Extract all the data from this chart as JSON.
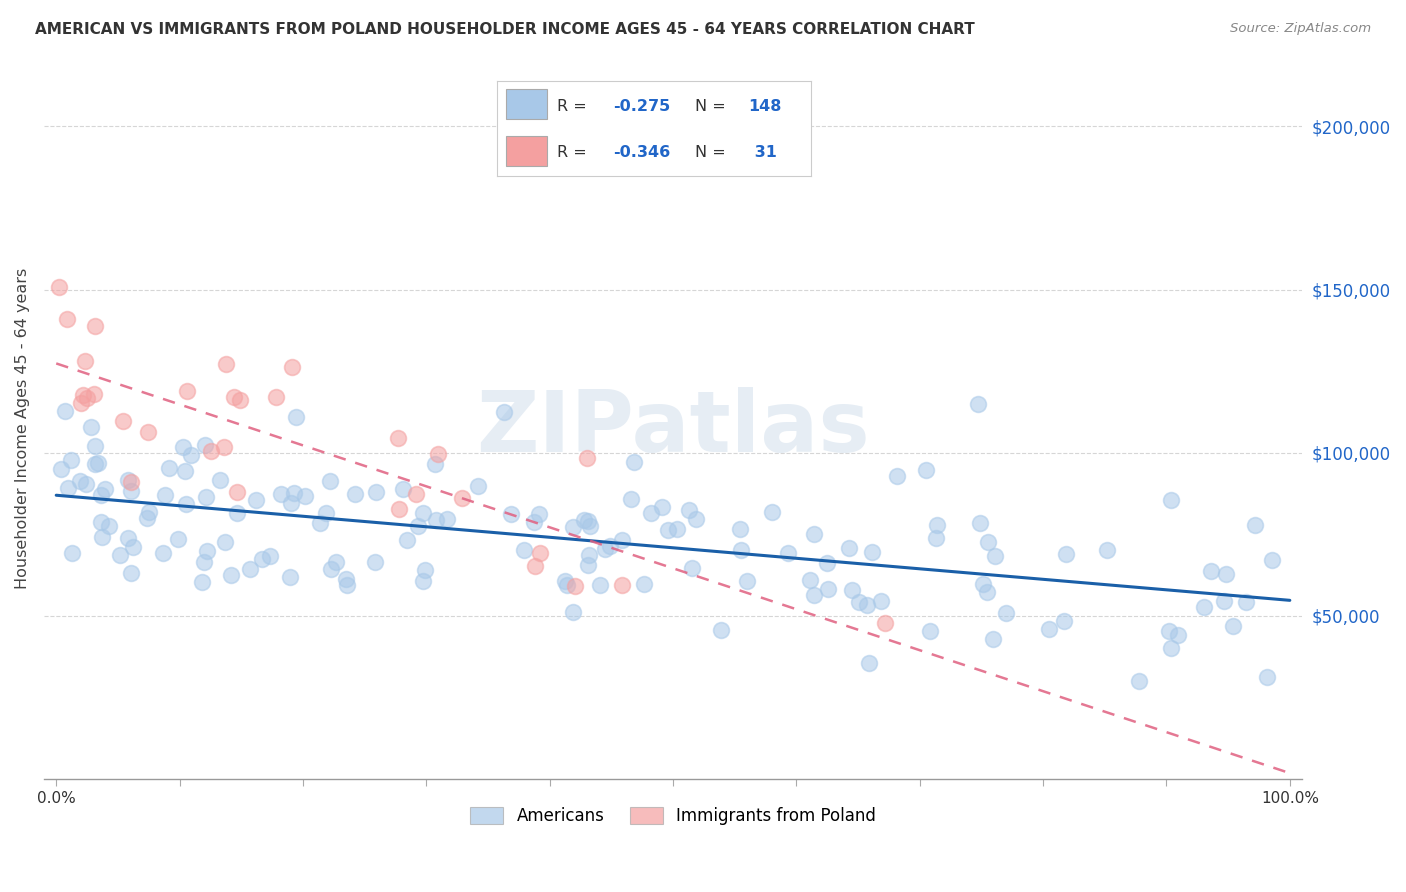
{
  "title": "AMERICAN VS IMMIGRANTS FROM POLAND HOUSEHOLDER INCOME AGES 45 - 64 YEARS CORRELATION CHART",
  "source": "Source: ZipAtlas.com",
  "ylabel": "Householder Income Ages 45 - 64 years",
  "xlim": [
    -1,
    101
  ],
  "ylim": [
    0,
    215000
  ],
  "yticks": [
    50000,
    100000,
    150000,
    200000
  ],
  "ytick_labels": [
    "$50,000",
    "$100,000",
    "$150,000",
    "$200,000"
  ],
  "xticks": [
    0,
    10,
    20,
    30,
    40,
    50,
    60,
    70,
    80,
    90,
    100
  ],
  "legend_label1": "Americans",
  "legend_label2": "Immigrants from Poland",
  "color_american": "#a8c8e8",
  "color_poland": "#f4a0a0",
  "color_american_line": "#1a5fa8",
  "color_poland_line": "#e06080",
  "color_ytick": "#2166c8",
  "watermark_text": "ZIPatlas",
  "background_color": "#ffffff",
  "grid_color": "#cccccc",
  "title_color": "#333333",
  "source_color": "#888888"
}
